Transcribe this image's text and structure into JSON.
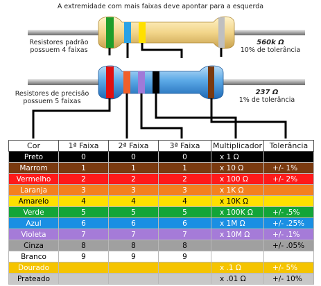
{
  "heading": "A extremidade com mais faixas deve apontar para a esquerda",
  "resistor4": {
    "label_line1": "Resistores padrão",
    "label_line2": "possuem 4 faixas",
    "value": "560k Ω",
    "tolerance": "10% de tolerância",
    "band_colors": [
      "#1f9d2a",
      "#2aa2e6",
      "#ffe000",
      "#bfbfbf"
    ]
  },
  "resistor5": {
    "label_line1": "Resistores de precisão",
    "label_line2": "possuem 5 faixas",
    "value": "237 Ω",
    "tolerance": "1% de tolerância",
    "band_colors": [
      "#e01010",
      "#f0602a",
      "#a07ad8",
      "#000000",
      "#7a3a10"
    ]
  },
  "table": {
    "headers": [
      "Cor",
      "1ª Faixa",
      "2ª Faixa",
      "3ª Faixa",
      "Multiplicador",
      "Tolerância"
    ],
    "rows": [
      {
        "cor": "Preto",
        "bg": "#000000",
        "fg": "#ffffff",
        "f1": "0",
        "f2": "0",
        "f3": "0",
        "mult": "x 1 Ω",
        "tol": ""
      },
      {
        "cor": "Marrom",
        "bg": "#7a3a10",
        "fg": "#ffffff",
        "f1": "1",
        "f2": "1",
        "f3": "1",
        "mult": "x 10 Ω",
        "tol": "+/-  1%"
      },
      {
        "cor": "Vermelho",
        "bg": "#ff1a1a",
        "fg": "#ffffff",
        "f1": "2",
        "f2": "2",
        "f3": "2",
        "mult": "x 100 Ω",
        "tol": "+/-  2%"
      },
      {
        "cor": "Laranja",
        "bg": "#f4801f",
        "fg": "#ffffff",
        "f1": "3",
        "f2": "3",
        "f3": "3",
        "mult": "x 1K Ω",
        "tol": ""
      },
      {
        "cor": "Amarelo",
        "bg": "#ffe000",
        "fg": "#000000",
        "f1": "4",
        "f2": "4",
        "f3": "4",
        "mult": "x 10K Ω",
        "tol": ""
      },
      {
        "cor": "Verde",
        "bg": "#13a538",
        "fg": "#ffffff",
        "f1": "5",
        "f2": "5",
        "f3": "5",
        "mult": "x 100K Ω",
        "tol": "+/-  .5%"
      },
      {
        "cor": "Azul",
        "bg": "#1a8fe3",
        "fg": "#ffffff",
        "f1": "6",
        "f2": "6",
        "f3": "6",
        "mult": "x 1M Ω",
        "tol": "+/-  .25%"
      },
      {
        "cor": "Violeta",
        "bg": "#a57bd8",
        "fg": "#ffffff",
        "f1": "7",
        "f2": "7",
        "f3": "7",
        "mult": "x 10M Ω",
        "tol": "+/-  .1%"
      },
      {
        "cor": "Cinza",
        "bg": "#a0a0a0",
        "fg": "#000000",
        "f1": "8",
        "f2": "8",
        "f3": "8",
        "mult": "",
        "tol": "+/-  .05%"
      },
      {
        "cor": "Branco",
        "bg": "#ffffff",
        "fg": "#000000",
        "f1": "9",
        "f2": "9",
        "f3": "9",
        "mult": "",
        "tol": ""
      },
      {
        "cor": "Dourado",
        "bg": "#f5c400",
        "fg": "#ffffff",
        "f1": "",
        "f2": "",
        "f3": "",
        "mult": "x .1 Ω",
        "tol": "+/-  5%"
      },
      {
        "cor": "Prateado",
        "bg": "#c8c8c8",
        "fg": "#000000",
        "f1": "",
        "f2": "",
        "f3": "",
        "mult": "x .01 Ω",
        "tol": "+/-  10%"
      }
    ]
  }
}
